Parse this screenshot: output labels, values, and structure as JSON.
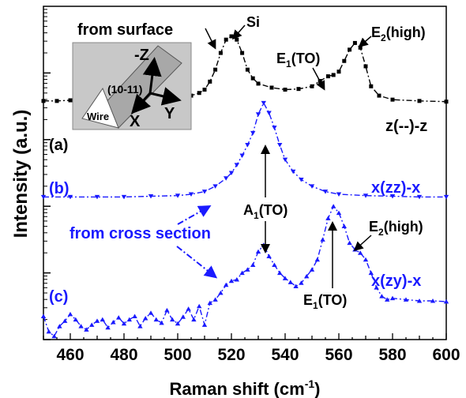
{
  "chart_data": {
    "type": "line",
    "xlabel": "Raman shift (cm",
    "xlabel_sup": "-1",
    "xlabel_end": ")",
    "ylabel": "Intensity (a.u.)",
    "xlim": [
      450,
      600
    ],
    "ylim": [
      0,
      5
    ],
    "log_scale_y": true,
    "x_ticks": [
      460,
      480,
      500,
      520,
      540,
      560,
      580,
      600
    ],
    "series": [
      {
        "name": "z(--)-z",
        "label": "(a)",
        "color": "#000000",
        "marker": "square",
        "line": "dash-dot",
        "x": [
          450,
          455,
          460,
          465,
          470,
          475,
          480,
          485,
          490,
          495,
          500,
          505,
          508,
          510,
          512,
          514,
          516,
          518,
          520,
          522,
          524,
          526,
          528,
          530,
          535,
          540,
          545,
          550,
          553,
          556,
          558,
          560,
          562,
          564,
          566,
          568,
          570,
          572,
          575,
          580,
          590,
          600
        ],
        "y": [
          3.58,
          3.58,
          3.59,
          3.59,
          3.59,
          3.6,
          3.6,
          3.61,
          3.61,
          3.62,
          3.63,
          3.66,
          3.7,
          3.75,
          3.87,
          4.05,
          4.3,
          4.5,
          4.55,
          4.5,
          4.3,
          4.05,
          3.92,
          3.84,
          3.78,
          3.75,
          3.76,
          3.8,
          3.88,
          3.95,
          3.97,
          4.02,
          4.18,
          4.35,
          4.45,
          4.38,
          4.1,
          3.8,
          3.66,
          3.6,
          3.58,
          3.57
        ]
      },
      {
        "name": "x(zz)-x",
        "label": "(b)",
        "color": "#1a1aff",
        "marker": "triangle-down",
        "line": "dash-dot",
        "x": [
          450,
          460,
          470,
          480,
          490,
          500,
          505,
          510,
          514,
          518,
          520,
          522,
          524,
          526,
          528,
          530,
          532,
          534,
          536,
          538,
          540,
          543,
          546,
          550,
          555,
          560,
          570,
          580,
          590,
          600
        ],
        "y": [
          2.14,
          2.14,
          2.14,
          2.14,
          2.15,
          2.16,
          2.18,
          2.22,
          2.3,
          2.42,
          2.5,
          2.62,
          2.76,
          2.92,
          3.1,
          3.38,
          3.55,
          3.4,
          3.18,
          2.92,
          2.7,
          2.52,
          2.4,
          2.3,
          2.22,
          2.18,
          2.16,
          2.15,
          2.14,
          2.14
        ]
      },
      {
        "name": "x(zy)-x",
        "label": "(c)",
        "color": "#1a1aff",
        "marker": "triangle-up",
        "line": "dash-dot",
        "x": [
          450,
          452,
          454,
          456,
          458,
          460,
          462,
          464,
          466,
          468,
          470,
          472,
          474,
          476,
          478,
          480,
          482,
          484,
          486,
          488,
          490,
          492,
          494,
          496,
          498,
          500,
          502,
          504,
          506,
          508,
          510,
          512,
          514,
          516,
          518,
          520,
          522,
          524,
          526,
          528,
          530,
          532,
          534,
          536,
          538,
          540,
          542,
          544,
          546,
          548,
          550,
          552,
          554,
          556,
          558,
          560,
          562,
          564,
          566,
          568,
          570,
          572,
          574,
          576,
          578,
          580,
          585,
          590,
          595,
          600
        ],
        "y": [
          0.35,
          0.12,
          0.05,
          0.2,
          0.28,
          0.38,
          0.3,
          0.2,
          0.15,
          0.22,
          0.28,
          0.3,
          0.18,
          0.26,
          0.33,
          0.24,
          0.3,
          0.35,
          0.2,
          0.32,
          0.4,
          0.3,
          0.25,
          0.44,
          0.3,
          0.24,
          0.34,
          0.46,
          0.3,
          0.5,
          0.22,
          0.55,
          0.6,
          0.7,
          0.82,
          0.88,
          0.9,
          1.0,
          1.05,
          1.12,
          1.32,
          1.42,
          1.25,
          1.12,
          1.0,
          0.92,
          0.86,
          0.8,
          0.85,
          0.95,
          1.05,
          1.2,
          1.5,
          1.82,
          2.0,
          1.9,
          1.7,
          1.45,
          1.35,
          1.3,
          1.2,
          1.0,
          0.78,
          0.65,
          0.6,
          0.62,
          0.6,
          0.58,
          0.58,
          0.57
        ]
      }
    ],
    "annotations": {
      "from_surface": "from  surface",
      "si": "Si",
      "e2_high_top": "E",
      "e2_high_top_sub": "2",
      "e2_high_top_end": "(high)",
      "e1_to_top": "E",
      "e1_to_top_sub": "1",
      "e1_to_top_end": "(TO)",
      "a1_to": "A",
      "a1_to_sub": "1",
      "a1_to_end": "(TO)",
      "from_cross_section": "from cross section",
      "e2_high_bottom": "E",
      "e2_high_bottom_sub": "2",
      "e2_high_bottom_end": "(high)",
      "e1_to_bottom": "E",
      "e1_to_bottom_sub": "1",
      "e1_to_bottom_end": "(TO)"
    },
    "inset": {
      "minus_z": "-Z",
      "plane": "(10-11)",
      "wire": "Wire",
      "x_axis": "X",
      "y_axis": "Y"
    }
  }
}
